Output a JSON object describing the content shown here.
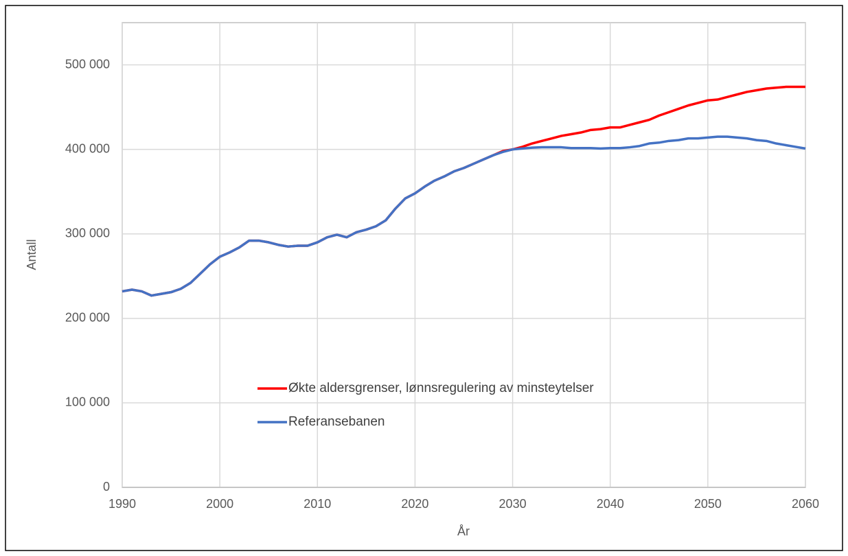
{
  "chart_data": {
    "type": "line",
    "x": [
      1990,
      1991,
      1992,
      1993,
      1994,
      1995,
      1996,
      1997,
      1998,
      1999,
      2000,
      2001,
      2002,
      2003,
      2004,
      2005,
      2006,
      2007,
      2008,
      2009,
      2010,
      2011,
      2012,
      2013,
      2014,
      2015,
      2016,
      2017,
      2018,
      2019,
      2020,
      2021,
      2022,
      2023,
      2024,
      2025,
      2026,
      2027,
      2028,
      2029,
      2030,
      2031,
      2032,
      2033,
      2034,
      2035,
      2036,
      2037,
      2038,
      2039,
      2040,
      2041,
      2042,
      2043,
      2044,
      2045,
      2046,
      2047,
      2048,
      2049,
      2050,
      2051,
      2052,
      2053,
      2054,
      2055,
      2056,
      2057,
      2058,
      2059,
      2060
    ],
    "series": [
      {
        "name": "Økte aldersgrenser, lønnsregulering av minsteytelser",
        "color": "#ff0000",
        "values": [
          232000,
          234000,
          232000,
          227000,
          229000,
          231000,
          235000,
          242000,
          253000,
          264000,
          273000,
          278000,
          284000,
          292000,
          292000,
          290000,
          287000,
          285000,
          286000,
          286000,
          290000,
          296000,
          299000,
          296000,
          302000,
          305000,
          309000,
          316000,
          330000,
          342000,
          348000,
          356000,
          363000,
          368000,
          374000,
          378000,
          383000,
          388000,
          393000,
          398000,
          400000,
          403000,
          407000,
          410000,
          413000,
          416000,
          418000,
          420000,
          423000,
          424000,
          426000,
          426000,
          429000,
          432000,
          435000,
          440000,
          444000,
          448000,
          452000,
          455000,
          458000,
          459000,
          462000,
          465000,
          468000,
          470000,
          472000,
          473000,
          474000,
          474000,
          474000
        ]
      },
      {
        "name": "Referansebanen",
        "color": "#4472c4",
        "values": [
          232000,
          234000,
          232000,
          227000,
          229000,
          231000,
          235000,
          242000,
          253000,
          264000,
          273000,
          278000,
          284000,
          292000,
          292000,
          290000,
          287000,
          285000,
          286000,
          286000,
          290000,
          296000,
          299000,
          296000,
          302000,
          305000,
          309000,
          316000,
          330000,
          342000,
          348000,
          356000,
          363000,
          368000,
          374000,
          378000,
          383000,
          388000,
          393000,
          397000,
          400000,
          401000,
          402000,
          402500,
          402500,
          402500,
          401500,
          401500,
          401500,
          401000,
          401500,
          401500,
          402500,
          404000,
          407000,
          408000,
          410000,
          411000,
          413000,
          413000,
          414000,
          415000,
          415000,
          414000,
          413000,
          411000,
          410000,
          407000,
          405000,
          403000,
          401000
        ]
      }
    ],
    "xlim": [
      1990,
      2060
    ],
    "xticks": [
      1990,
      2000,
      2010,
      2020,
      2030,
      2040,
      2050,
      2060
    ],
    "ylim": [
      0,
      550000
    ],
    "yticks": [
      0,
      {
        "value": 100000,
        "label": "100 000"
      },
      {
        "value": 200000,
        "label": "200 000"
      },
      {
        "value": 300000,
        "label": "300 000"
      },
      {
        "value": 400000,
        "label": "400 000"
      },
      {
        "value": 500000,
        "label": "500 000"
      }
    ],
    "xlabel": "År",
    "ylabel": "Antall",
    "grid": true,
    "legend": "lower left"
  }
}
